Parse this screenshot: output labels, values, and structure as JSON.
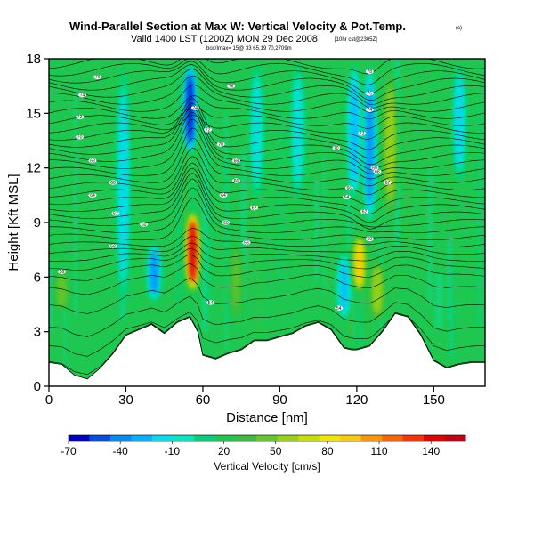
{
  "chart_data": {
    "type": "heatmap",
    "title": "Wind-Parallel Section at Max W: Vertical Velocity & Pot.Temp.",
    "title_mark": "(c)",
    "subtitle": "Valid 1400 LST (1200Z) MON 29 Dec 2008",
    "subtitle_note": "[10hr cst@2305Z]",
    "info_line": "box/Imax= 15@ 33 65,19 70,2709m",
    "xlabel": "Distance [nm]",
    "ylabel": "Height [Kft MSL]",
    "xlim": [
      0,
      170
    ],
    "ylim": [
      0,
      18
    ],
    "xticks": [
      0,
      30,
      60,
      90,
      120,
      150
    ],
    "yticks": [
      0,
      3,
      6,
      9,
      12,
      15,
      18
    ],
    "colorbar": {
      "label": "Vertical Velocity [cm/s]",
      "tick_labels": [
        "-70",
        "-40",
        "-10",
        "20",
        "50",
        "80",
        "110",
        "140"
      ],
      "tick_values": [
        -70,
        -40,
        -10,
        20,
        50,
        80,
        110,
        140
      ],
      "colors": [
        "#0000c8",
        "#0050e6",
        "#008cf5",
        "#00b4ff",
        "#00dcf0",
        "#00e6be",
        "#00d278",
        "#1ec850",
        "#3cbe3c",
        "#64c828",
        "#96d214",
        "#c8dc00",
        "#f0e600",
        "#ffc800",
        "#ff9600",
        "#ff6400",
        "#ff3200",
        "#e60000",
        "#c80014"
      ],
      "range": [
        -70,
        160
      ]
    },
    "background_value": 20,
    "updraft_cores": [
      {
        "x": 56,
        "y_bottom": 5.0,
        "y_top": 9.8,
        "value": 150
      },
      {
        "x": 121,
        "y_bottom": 5.0,
        "y_top": 8.5,
        "value": 90
      },
      {
        "x": 133,
        "y_bottom": 9.0,
        "y_top": 17.5,
        "value": 60
      },
      {
        "x": 128,
        "y_bottom": 3.5,
        "y_top": 7.0,
        "value": 60
      },
      {
        "x": 73,
        "y_bottom": 3.5,
        "y_top": 8.0,
        "value": 40
      },
      {
        "x": 5,
        "y_bottom": 4.0,
        "y_top": 6.5,
        "value": 50
      }
    ],
    "downdraft_cores": [
      {
        "x": 55,
        "y_bottom": 12.5,
        "y_top": 18,
        "value": -60
      },
      {
        "x": 125,
        "y_bottom": 8.5,
        "y_top": 18,
        "value": -40
      },
      {
        "x": 119,
        "y_bottom": 10.0,
        "y_top": 18,
        "value": -30
      },
      {
        "x": 29,
        "y_bottom": 4.0,
        "y_top": 18,
        "value": -20
      },
      {
        "x": 41,
        "y_bottom": 4.5,
        "y_top": 8.0,
        "value": -40
      },
      {
        "x": 81,
        "y_bottom": 10.0,
        "y_top": 18,
        "value": -15
      },
      {
        "x": 97,
        "y_bottom": 10.0,
        "y_top": 18,
        "value": -15
      },
      {
        "x": 115,
        "y_bottom": 3.5,
        "y_top": 7.5,
        "value": -25
      },
      {
        "x": 160,
        "y_bottom": 11.0,
        "y_top": 18,
        "value": -20
      }
    ],
    "terrain": [
      {
        "x": 0,
        "y": 1.3
      },
      {
        "x": 5,
        "y": 1.2
      },
      {
        "x": 10,
        "y": 0.6
      },
      {
        "x": 15,
        "y": 0.4
      },
      {
        "x": 20,
        "y": 1.0
      },
      {
        "x": 25,
        "y": 1.8
      },
      {
        "x": 30,
        "y": 2.8
      },
      {
        "x": 35,
        "y": 3.1
      },
      {
        "x": 40,
        "y": 3.4
      },
      {
        "x": 45,
        "y": 2.9
      },
      {
        "x": 50,
        "y": 3.5
      },
      {
        "x": 55,
        "y": 3.8
      },
      {
        "x": 58,
        "y": 3.0
      },
      {
        "x": 60,
        "y": 1.7
      },
      {
        "x": 65,
        "y": 1.5
      },
      {
        "x": 70,
        "y": 1.8
      },
      {
        "x": 75,
        "y": 2.0
      },
      {
        "x": 80,
        "y": 2.5
      },
      {
        "x": 85,
        "y": 2.5
      },
      {
        "x": 90,
        "y": 2.7
      },
      {
        "x": 95,
        "y": 2.9
      },
      {
        "x": 100,
        "y": 3.3
      },
      {
        "x": 105,
        "y": 3.5
      },
      {
        "x": 110,
        "y": 3.1
      },
      {
        "x": 115,
        "y": 2.1
      },
      {
        "x": 118,
        "y": 2.0
      },
      {
        "x": 120,
        "y": 2.0
      },
      {
        "x": 125,
        "y": 2.2
      },
      {
        "x": 130,
        "y": 3.0
      },
      {
        "x": 135,
        "y": 4.0
      },
      {
        "x": 140,
        "y": 3.8
      },
      {
        "x": 145,
        "y": 2.8
      },
      {
        "x": 150,
        "y": 1.4
      },
      {
        "x": 155,
        "y": 1.0
      },
      {
        "x": 160,
        "y": 1.2
      },
      {
        "x": 165,
        "y": 1.3
      },
      {
        "x": 170,
        "y": 1.3
      }
    ],
    "isentropes": {
      "units": "Potential temperature [F]",
      "min": 32,
      "max": 100,
      "interval": 2,
      "heights_at_left_edge": [
        1.3,
        2.2,
        3.2,
        4.4,
        5.4,
        6.1,
        6.6,
        7.0,
        7.4,
        7.8,
        8.2,
        8.6,
        9.0,
        9.4,
        9.8,
        10.2,
        10.6,
        11.0,
        11.4,
        11.8,
        12.2,
        12.6,
        13.0,
        13.4,
        13.8,
        14.2,
        14.6,
        15.0,
        15.4,
        15.8,
        16.2,
        16.6,
        17.0,
        17.4,
        17.8
      ],
      "labels": [
        {
          "x": 5,
          "y": 6.3,
          "text": "56"
        },
        {
          "x": 25,
          "y": 7.7,
          "text": "58"
        },
        {
          "x": 37,
          "y": 8.9,
          "text": "60"
        },
        {
          "x": 26,
          "y": 9.5,
          "text": "62"
        },
        {
          "x": 17,
          "y": 10.5,
          "text": "64"
        },
        {
          "x": 25,
          "y": 11.2,
          "text": "66"
        },
        {
          "x": 17,
          "y": 12.4,
          "text": "68"
        },
        {
          "x": 12,
          "y": 13.7,
          "text": "70"
        },
        {
          "x": 12,
          "y": 14.8,
          "text": "72"
        },
        {
          "x": 13,
          "y": 16.0,
          "text": "74"
        },
        {
          "x": 19,
          "y": 17.0,
          "text": "76"
        },
        {
          "x": 69,
          "y": 9.0,
          "text": "60"
        },
        {
          "x": 77,
          "y": 7.9,
          "text": "58"
        },
        {
          "x": 80,
          "y": 9.8,
          "text": "62"
        },
        {
          "x": 68,
          "y": 10.5,
          "text": "64"
        },
        {
          "x": 73,
          "y": 11.3,
          "text": "66"
        },
        {
          "x": 73,
          "y": 12.4,
          "text": "68"
        },
        {
          "x": 67,
          "y": 13.3,
          "text": "70"
        },
        {
          "x": 62,
          "y": 14.1,
          "text": "72"
        },
        {
          "x": 57,
          "y": 15.3,
          "text": "74"
        },
        {
          "x": 71,
          "y": 16.5,
          "text": "76"
        },
        {
          "x": 112,
          "y": 13.1,
          "text": "70"
        },
        {
          "x": 116,
          "y": 10.4,
          "text": "64"
        },
        {
          "x": 117,
          "y": 10.9,
          "text": "66"
        },
        {
          "x": 123,
          "y": 9.6,
          "text": "62"
        },
        {
          "x": 128,
          "y": 11.8,
          "text": "68"
        },
        {
          "x": 127,
          "y": 12.0,
          "text": "69"
        },
        {
          "x": 132,
          "y": 11.2,
          "text": "67"
        },
        {
          "x": 122,
          "y": 13.9,
          "text": "72"
        },
        {
          "x": 125,
          "y": 15.2,
          "text": "74"
        },
        {
          "x": 125,
          "y": 16.1,
          "text": "76"
        },
        {
          "x": 125,
          "y": 17.3,
          "text": "78"
        },
        {
          "x": 125,
          "y": 8.1,
          "text": "60"
        },
        {
          "x": 63,
          "y": 4.6,
          "text": "54"
        },
        {
          "x": 113,
          "y": 4.3,
          "text": "54"
        }
      ]
    }
  }
}
